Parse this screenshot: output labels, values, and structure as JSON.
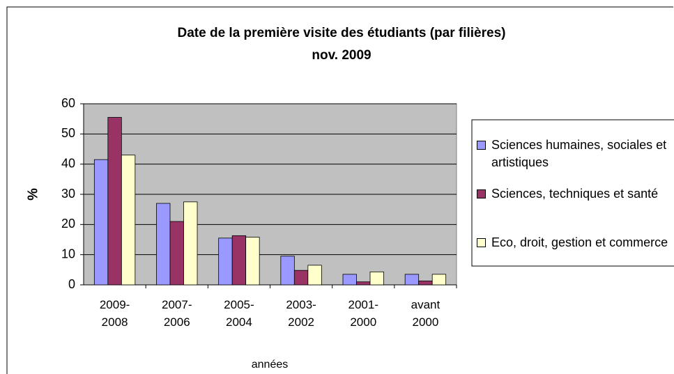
{
  "chart_data": {
    "type": "bar",
    "title": "Date de la première visite des étudiants (par filières)",
    "subtitle": "nov. 2009",
    "x_label": "années",
    "y_label": "%",
    "categories": [
      "2009-2008",
      "2007-2006",
      "2005-2004",
      "2003-2002",
      "2001-2000",
      "avant 2000"
    ],
    "series": [
      {
        "name": "Sciences humaines, sociales et artistiques",
        "color": "#9999ff",
        "values": [
          41.5,
          27,
          15.5,
          9.5,
          3.5,
          3.5
        ]
      },
      {
        "name": "Sciences, techniques et santé",
        "color": "#993366",
        "values": [
          55.5,
          21,
          16.3,
          4.8,
          1,
          1.3
        ]
      },
      {
        "name": "Eco, droit, gestion et commerce",
        "color": "#ffffcc",
        "values": [
          43,
          27.5,
          15.8,
          6.5,
          4.3,
          3.5
        ]
      }
    ],
    "ylim": [
      0,
      60
    ],
    "yticks": [
      0,
      10,
      20,
      30,
      40,
      50,
      60
    ],
    "grid": true,
    "legend": "right"
  }
}
